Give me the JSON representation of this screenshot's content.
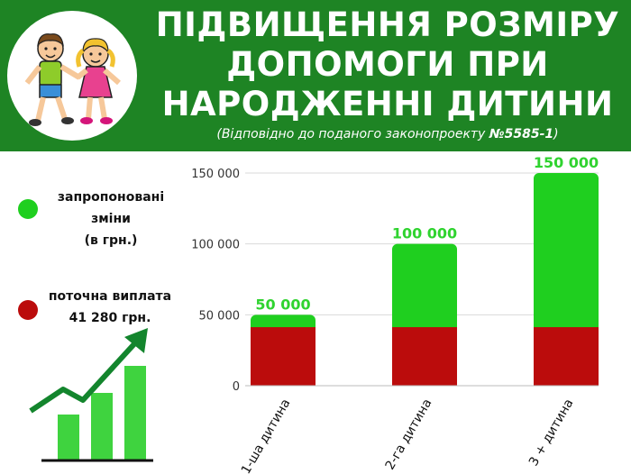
{
  "header": {
    "title_lines": [
      "ПІДВИЩЕННЯ РОЗМІРУ",
      "ДОПОМОГИ ПРИ",
      "НАРОДЖЕННІ ДИТИНИ"
    ],
    "subtitle_prefix": "(Відповідно до поданого законопроекту ",
    "subtitle_bill": "№5585-1",
    "subtitle_suffix": ")"
  },
  "legend": {
    "proposed_lines": [
      "запропоновані",
      "зміни",
      "(в грн.)"
    ],
    "current_lines": [
      "поточна виплата",
      "41 280 грн."
    ]
  },
  "colors": {
    "header_bg": "#1e8424",
    "proposed": "#1fcf1f",
    "current": "#bb0c0c",
    "value_label": "#2fd32f",
    "icon_bars": "#3fd33f",
    "icon_arrow": "#13852d"
  },
  "chart_data": {
    "type": "bar",
    "stacked": true,
    "categories": [
      "1-ша дитина",
      "2-га дитина",
      "3 + дитина"
    ],
    "series": [
      {
        "name": "поточна виплата",
        "values": [
          41280,
          41280,
          41280
        ]
      },
      {
        "name": "запропоновані зміни",
        "values": [
          8720,
          58720,
          108720
        ]
      }
    ],
    "totals": [
      50000,
      100000,
      150000
    ],
    "total_labels": [
      "50 000",
      "100 000",
      "150 000"
    ],
    "ylim": [
      0,
      150000
    ],
    "yticks": [
      0,
      50000,
      100000,
      150000
    ],
    "ytick_labels": [
      "0",
      "50 000",
      "100 000",
      "150 000"
    ],
    "grid": true,
    "legend_position": "left"
  }
}
